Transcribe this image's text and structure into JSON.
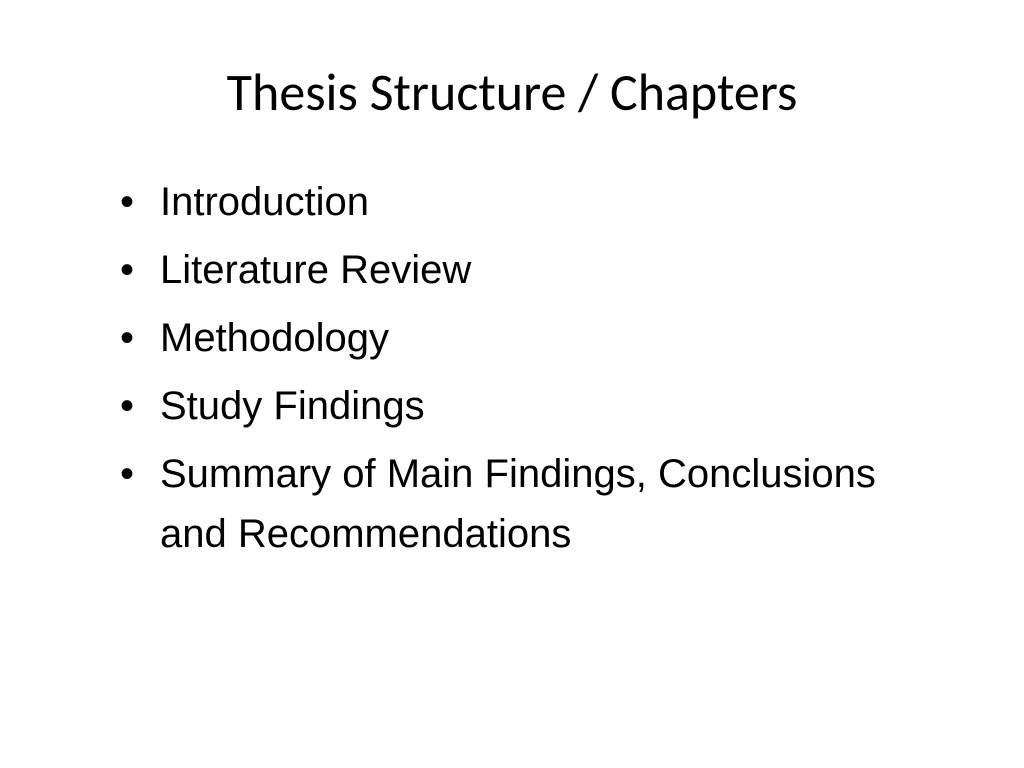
{
  "slide": {
    "title": "Thesis Structure / Chapters",
    "title_fontsize": 52,
    "title_font": "Calibri",
    "title_color": "#000000",
    "background_color": "#ffffff",
    "bullets": [
      "Introduction",
      "Literature Review",
      "Methodology",
      "Study Findings",
      "Summary of Main Findings, Conclusions and Recommendations"
    ],
    "bullet_fontsize": 40,
    "bullet_font": "Arial",
    "bullet_color": "#000000",
    "bullet_marker": "•"
  }
}
